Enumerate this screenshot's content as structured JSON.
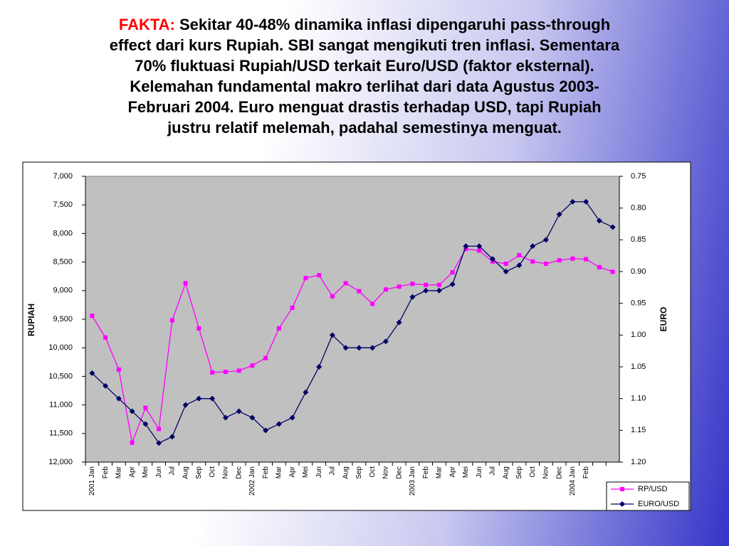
{
  "title": {
    "label": "FAKTA:",
    "lines": [
      "Sekitar 40-48% dinamika inflasi dipengaruhi pass-through",
      "effect dari kurs Rupiah. SBI sangat mengikuti tren inflasi. Sementara",
      "70% fluktuasi Rupiah/USD terkait Euro/USD (faktor eksternal).",
      "Kelemahan fundamental makro terlihat dari data Agustus 2003-",
      "Februari 2004. Euro menguat drastis terhadap USD, tapi Rupiah",
      "justru relatif melemah, padahal semestinya menguat."
    ]
  },
  "chart_data": {
    "type": "line",
    "categories": [
      "2001 Jan",
      "Feb",
      "Mar",
      "Apr",
      "Mei",
      "Jun",
      "Jul",
      "Aug",
      "Sep",
      "Oct",
      "Nov",
      "Dec",
      "2002 Jan",
      "Feb",
      "Mar",
      "Apr",
      "Mei",
      "Jun",
      "Jul",
      "Aug",
      "Sep",
      "Oct",
      "Nov",
      "Dec",
      "2003 Jan",
      "Feb",
      "Mar",
      "Apr",
      "Mei",
      "Jun",
      "Jul",
      "Aug",
      "Sep",
      "Oct",
      "Nov",
      "Dec",
      "2004 Jan",
      "Feb",
      null,
      null
    ],
    "ylabel": "RUPIAH",
    "y2label": "EURO",
    "y_inverted": true,
    "y2_inverted": true,
    "grid": false,
    "legend": "lower right",
    "ylim": [
      7000,
      12000
    ],
    "yticks": [
      {
        "value": 7000,
        "label": "7,000"
      },
      {
        "value": 7500,
        "label": "7,500"
      },
      {
        "value": 8000,
        "label": "8,000"
      },
      {
        "value": 8500,
        "label": "8,500"
      },
      {
        "value": 9000,
        "label": "9,000"
      },
      {
        "value": 9500,
        "label": "9,500"
      },
      {
        "value": 10000,
        "label": "10,000"
      },
      {
        "value": 10500,
        "label": "10,500"
      },
      {
        "value": 11000,
        "label": "11,000"
      },
      {
        "value": 11500,
        "label": "11,500"
      },
      {
        "value": 12000,
        "label": "12,000"
      }
    ],
    "y2lim": [
      0.75,
      1.2
    ],
    "y2ticks": [
      0.75,
      {
        "value": 0.8,
        "label": "0.80"
      },
      0.85,
      {
        "value": 0.9,
        "label": "0.90"
      },
      0.95,
      {
        "value": 1.0,
        "label": "1.00"
      },
      1.05,
      {
        "value": 1.1,
        "label": "1.10"
      },
      1.15,
      {
        "value": 1.2,
        "label": "1.20"
      }
    ],
    "series": [
      {
        "name": "RP/USD",
        "color": "#ff00ff",
        "marker": "square",
        "values": [
          9440,
          9820,
          10380,
          11660,
          11050,
          11420,
          9520,
          8870,
          9660,
          10430,
          10420,
          10400,
          10310,
          10180,
          9660,
          9300,
          8780,
          8730,
          9100,
          8870,
          9010,
          9230,
          8980,
          8930,
          8880,
          8900,
          8900,
          8680,
          8270,
          8300,
          8490,
          8530,
          8380,
          8490,
          8530,
          8470,
          8440,
          8450,
          8590,
          8670
        ]
      },
      {
        "name": "EURO/USD",
        "color": "#000066",
        "marker": "diamond",
        "axis": "y2",
        "values": [
          1.06,
          1.08,
          1.1,
          1.12,
          1.14,
          1.17,
          1.16,
          1.11,
          1.1,
          1.1,
          1.13,
          1.12,
          1.13,
          1.15,
          1.14,
          1.13,
          1.09,
          1.05,
          1.0,
          1.02,
          1.02,
          1.02,
          1.01,
          0.98,
          0.94,
          0.93,
          0.93,
          0.92,
          0.86,
          0.86,
          0.88,
          0.9,
          0.89,
          0.86,
          0.85,
          0.81,
          0.79,
          0.79,
          0.82,
          0.83
        ]
      }
    ]
  }
}
